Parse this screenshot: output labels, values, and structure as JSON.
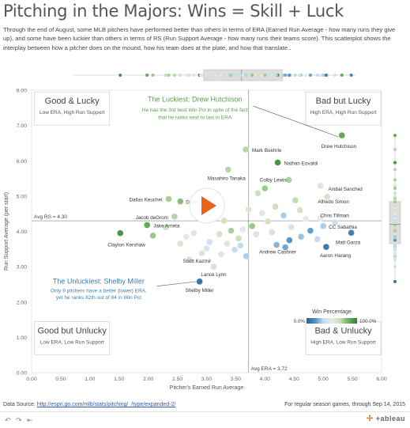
{
  "header": {
    "title": "Pitching in the Majors: Wins = Skill + Luck",
    "subtitle": "Through the end of August, some MLB pitchers have performed better than others in terms of ERA (Earned Run Average - how many runs they give up), and some have been luckier than others in terms of RS (Run Support Average - how many runs their teams score). This scatterplot shows the interplay between how a pitcher does on the mound, how his team does at the plate, and how that translate.."
  },
  "footer": {
    "source_label": "Data Source: ",
    "source_link": "http://espn.go.com/mlb/stats/pitching/_/type/expanded-2/",
    "note": "For regular season games, through Sep 14, 2015",
    "brand": "+ableau"
  },
  "chart_data": {
    "type": "scatter",
    "xlabel": "Pitcher's Earned Run Average",
    "ylabel": "Run Support Average (per start)",
    "xlim": [
      0,
      6
    ],
    "ylim": [
      0,
      8
    ],
    "xticks": [
      "0.00",
      "0.50",
      "1.00",
      "1.50",
      "2.00",
      "2.50",
      "3.00",
      "3.50",
      "4.00",
      "4.50",
      "5.00",
      "5.50",
      "6.00"
    ],
    "yticks": [
      "0.00",
      "1.00",
      "2.00",
      "3.00",
      "4.00",
      "5.00",
      "6.00",
      "7.00",
      "8.00"
    ],
    "reference_lines": [
      {
        "axis": "y",
        "value": 4.3,
        "label": "Avg RS = 4.30"
      },
      {
        "axis": "x",
        "value": 3.72,
        "label": "Avg ERA = 3.72"
      }
    ],
    "color_legend": {
      "title": "Win Percentage",
      "min_label": "0.0%",
      "max_label": "100.0%",
      "colors": [
        "#2c5f8a",
        "#4a90c2",
        "#c6dbef",
        "#e8e8e8",
        "#c7e1b5",
        "#6aaf59",
        "#2d7d32"
      ]
    },
    "quadrants": [
      {
        "title": "Good & Lucky",
        "desc": "Low ERA, High Run Support"
      },
      {
        "title": "Bad but Lucky",
        "desc": "High ERA, High Run Support"
      },
      {
        "title": "Good but Unlucky",
        "desc": "Low ERA, Low Run Support"
      },
      {
        "title": "Bad & Unlucky",
        "desc": "High ERA, Low Run Support"
      }
    ],
    "annotations": [
      {
        "title": "The Luckiest: Drew Hutchison",
        "text": "He has the 3rd best Win Pct in spite of the fact that he ranks next to last in ERA",
        "color": "#5aa04a",
        "target_x": 5.32,
        "target_y": 6.72
      },
      {
        "title": "The Unluckiest: Shelby Miller",
        "text": "Only 9 pitchers have a better (lower) ERA, yet he ranks 82th out of 84 in Win Pct",
        "color": "#3a7fb5",
        "target_x": 2.88,
        "target_y": 2.58
      }
    ],
    "points": [
      {
        "name": "Drew Hutchison",
        "x": 5.32,
        "y": 6.72,
        "win": 0.85
      },
      {
        "name": "Mark Buehrle",
        "x": 3.67,
        "y": 6.32,
        "win": 0.7
      },
      {
        "name": "Nathan Eovaldi",
        "x": 4.22,
        "y": 5.95,
        "win": 0.92
      },
      {
        "name": "Masahiro Tanaka",
        "x": 3.37,
        "y": 5.75,
        "win": 0.7
      },
      {
        "name": "Colby Lewis",
        "x": 4.41,
        "y": 5.46,
        "win": 0.72
      },
      {
        "name": "Anibal Sanchez",
        "x": 4.95,
        "y": 5.29,
        "win": 0.55
      },
      {
        "name": "Alfredo Simon",
        "x": 5.07,
        "y": 4.98,
        "win": 0.6
      },
      {
        "name": "Dallas Keuchel",
        "x": 2.35,
        "y": 4.92,
        "win": 0.73
      },
      {
        "name": "David Price",
        "x": 2.55,
        "y": 4.85,
        "win": 0.78
      },
      {
        "name": "Jacob deGrom",
        "x": 2.45,
        "y": 4.42,
        "win": 0.7
      },
      {
        "name": "Chris Tillman",
        "x": 4.95,
        "y": 4.38,
        "win": 0.5
      },
      {
        "name": "CC Sabathia",
        "x": 5.0,
        "y": 4.15,
        "win": 0.3
      },
      {
        "name": "Jake Arrieta",
        "x": 1.98,
        "y": 4.18,
        "win": 0.85
      },
      {
        "name": "Clayton Kershaw",
        "x": 1.52,
        "y": 3.95,
        "win": 0.92
      },
      {
        "name": "Matt Garza",
        "x": 5.48,
        "y": 3.96,
        "win": 0.12
      },
      {
        "name": "Andrew Cashner",
        "x": 4.2,
        "y": 3.62,
        "win": 0.25
      },
      {
        "name": "Aaron Harang",
        "x": 5.05,
        "y": 3.56,
        "win": 0.1
      },
      {
        "name": "Scott Kazmir",
        "x": 2.92,
        "y": 3.38,
        "win": 0.56
      },
      {
        "name": "Lance Lynn",
        "x": 3.12,
        "y": 3.0,
        "win": 0.6
      },
      {
        "name": "Shelby Miller",
        "x": 2.88,
        "y": 2.58,
        "win": 0.08
      },
      {
        "name": "",
        "x": 2.08,
        "y": 3.88,
        "win": 0.75
      },
      {
        "name": "",
        "x": 2.65,
        "y": 3.85,
        "win": 0.5
      },
      {
        "name": "",
        "x": 2.78,
        "y": 3.95,
        "win": 0.45
      },
      {
        "name": "",
        "x": 3.05,
        "y": 3.7,
        "win": 0.4
      },
      {
        "name": "",
        "x": 3.22,
        "y": 3.92,
        "win": 0.6
      },
      {
        "name": "",
        "x": 3.35,
        "y": 3.65,
        "win": 0.55
      },
      {
        "name": "",
        "x": 3.48,
        "y": 3.48,
        "win": 0.35
      },
      {
        "name": "",
        "x": 3.55,
        "y": 3.8,
        "win": 0.65
      },
      {
        "name": "",
        "x": 3.62,
        "y": 4.05,
        "win": 0.5
      },
      {
        "name": "",
        "x": 3.68,
        "y": 3.3,
        "win": 0.3
      },
      {
        "name": "",
        "x": 3.78,
        "y": 4.15,
        "win": 0.75
      },
      {
        "name": "",
        "x": 3.85,
        "y": 3.92,
        "win": 0.55
      },
      {
        "name": "",
        "x": 3.95,
        "y": 4.52,
        "win": 0.45
      },
      {
        "name": "",
        "x": 4.05,
        "y": 4.28,
        "win": 0.62
      },
      {
        "name": "",
        "x": 4.12,
        "y": 3.98,
        "win": 0.4
      },
      {
        "name": "",
        "x": 4.18,
        "y": 4.7,
        "win": 0.65
      },
      {
        "name": "",
        "x": 4.32,
        "y": 4.45,
        "win": 0.3
      },
      {
        "name": "",
        "x": 4.45,
        "y": 4.12,
        "win": 0.55
      },
      {
        "name": "",
        "x": 4.52,
        "y": 4.88,
        "win": 0.68
      },
      {
        "name": "",
        "x": 4.62,
        "y": 3.85,
        "win": 0.28
      },
      {
        "name": "",
        "x": 4.7,
        "y": 4.35,
        "win": 0.5
      },
      {
        "name": "",
        "x": 4.78,
        "y": 4.02,
        "win": 0.2
      },
      {
        "name": "",
        "x": 4.9,
        "y": 3.78,
        "win": 0.35
      },
      {
        "name": "",
        "x": 3.3,
        "y": 4.3,
        "win": 0.62
      },
      {
        "name": "",
        "x": 3.42,
        "y": 4.02,
        "win": 0.72
      },
      {
        "name": "",
        "x": 3.72,
        "y": 4.62,
        "win": 0.58
      },
      {
        "name": "",
        "x": 2.3,
        "y": 4.12,
        "win": 0.66
      },
      {
        "name": "",
        "x": 2.9,
        "y": 4.65,
        "win": 0.52
      },
      {
        "name": "",
        "x": 3.15,
        "y": 4.48,
        "win": 0.48
      },
      {
        "name": "",
        "x": 4.0,
        "y": 5.22,
        "win": 0.74
      },
      {
        "name": "",
        "x": 3.88,
        "y": 5.08,
        "win": 0.64
      },
      {
        "name": "",
        "x": 4.35,
        "y": 3.55,
        "win": 0.22
      },
      {
        "name": "",
        "x": 2.7,
        "y": 3.2,
        "win": 0.38
      },
      {
        "name": "",
        "x": 3.0,
        "y": 3.52,
        "win": 0.42
      },
      {
        "name": "",
        "x": 2.55,
        "y": 3.65,
        "win": 0.58
      },
      {
        "name": "",
        "x": 3.25,
        "y": 3.35,
        "win": 0.46
      },
      {
        "name": "",
        "x": 3.58,
        "y": 3.6,
        "win": 0.33
      },
      {
        "name": "",
        "x": 4.6,
        "y": 4.6,
        "win": 0.61
      },
      {
        "name": "",
        "x": 5.2,
        "y": 4.25,
        "win": 0.38
      },
      {
        "name": "",
        "x": 4.42,
        "y": 3.75,
        "win": 0.18
      }
    ]
  }
}
